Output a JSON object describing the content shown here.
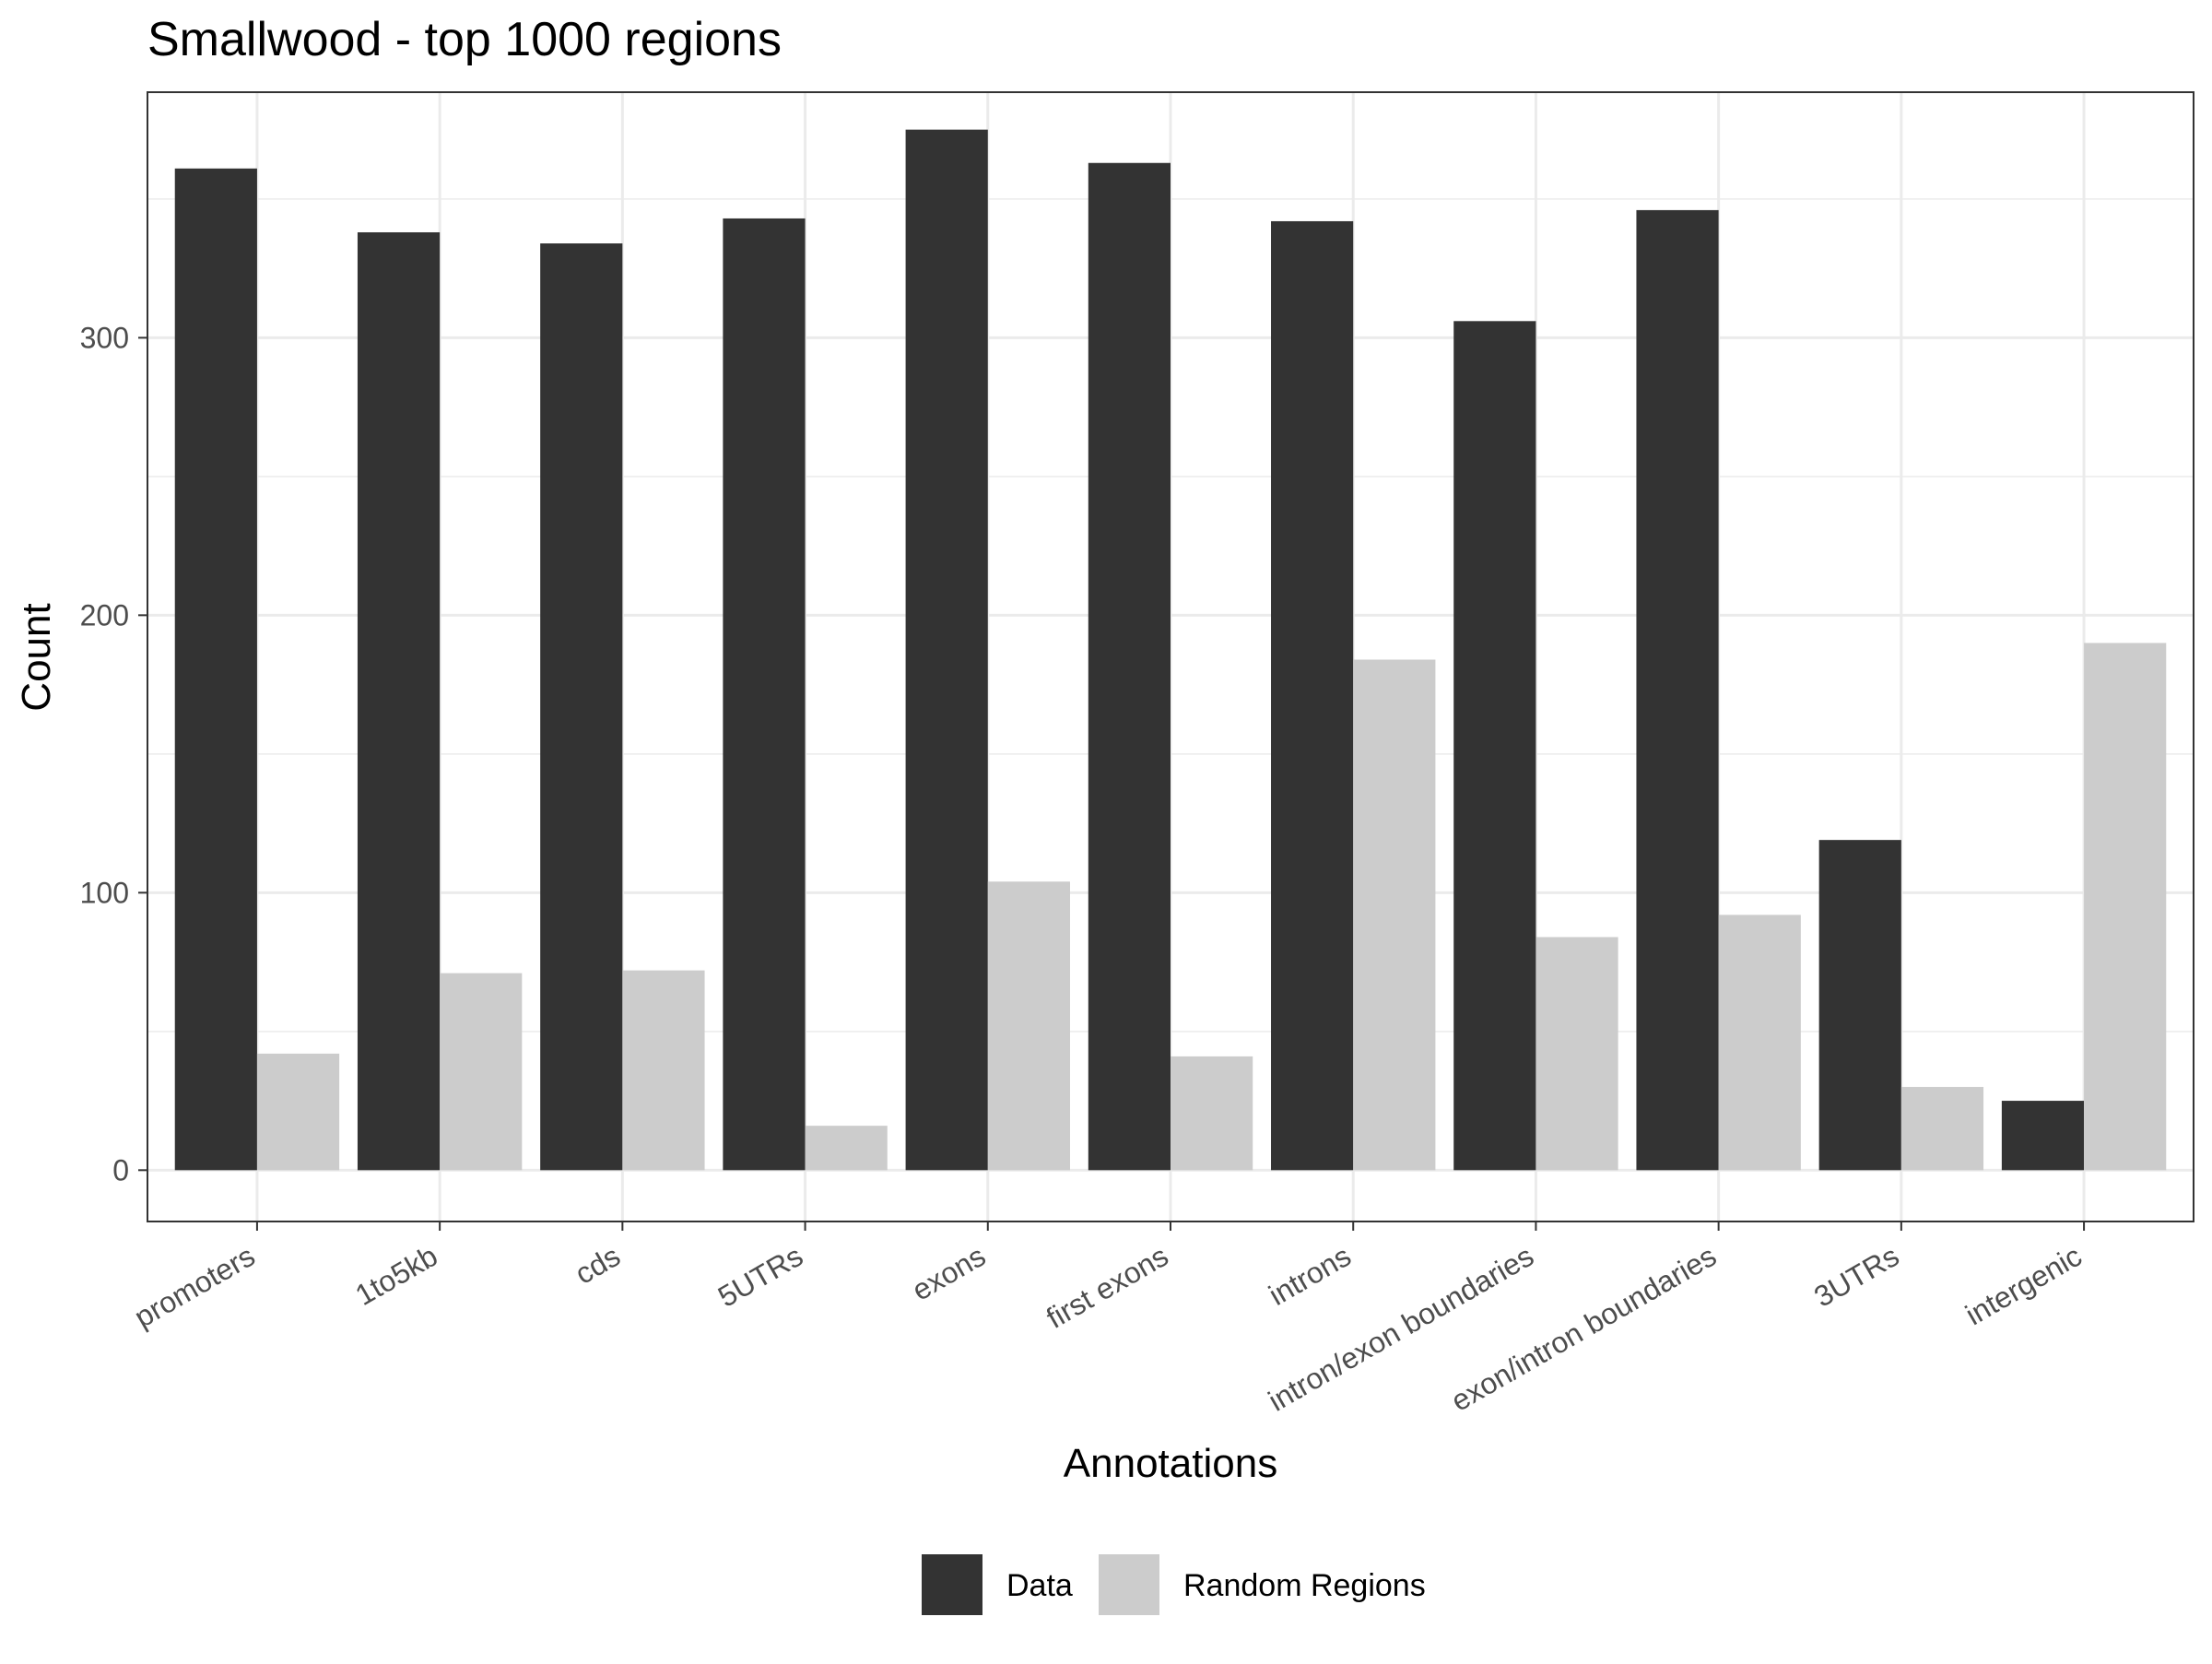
{
  "chart_data": {
    "type": "bar",
    "title": "Smallwood - top 1000 regions",
    "xlabel": "Annotations",
    "ylabel": "Count",
    "ylim": [
      -18.5,
      388.5
    ],
    "yticks": [
      0,
      100,
      200,
      300
    ],
    "grid": true,
    "legend_position": "bottom",
    "categories": [
      "promoters",
      "1to5kb",
      "cds",
      "5UTRs",
      "exons",
      "first exons",
      "introns",
      "intron/exon boundaries",
      "exon/intron boundaries",
      "3UTRs",
      "intergenic"
    ],
    "series": [
      {
        "name": "Data",
        "color": "#333333",
        "values": [
          361,
          338,
          334,
          343,
          375,
          363,
          342,
          306,
          346,
          119,
          25
        ]
      },
      {
        "name": "Random Regions",
        "color": "#cccccc",
        "values": [
          42,
          71,
          72,
          16,
          104,
          41,
          184,
          84,
          92,
          30,
          190
        ]
      }
    ]
  }
}
